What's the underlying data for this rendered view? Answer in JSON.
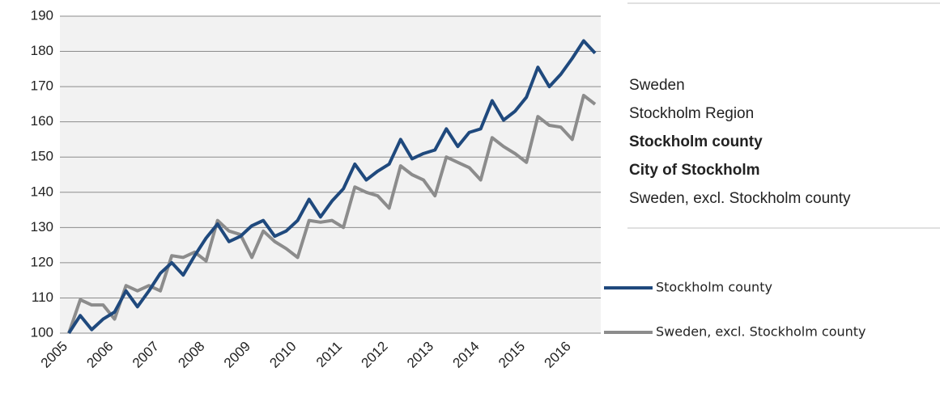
{
  "chart_data": {
    "type": "line",
    "categories": [
      "2005",
      null,
      null,
      null,
      "2006",
      null,
      null,
      null,
      "2007",
      null,
      null,
      null,
      "2008",
      null,
      null,
      null,
      "2009",
      null,
      null,
      null,
      "2010",
      null,
      null,
      null,
      "2011",
      null,
      null,
      null,
      "2012",
      null,
      null,
      null,
      "2013",
      null,
      null,
      null,
      "2014",
      null,
      null,
      null,
      "2015",
      null,
      null,
      null,
      "2016",
      null,
      null
    ],
    "series": [
      {
        "name": "Stockholm county",
        "color": "#1f497d",
        "values": [
          100,
          105,
          101,
          104,
          106,
          112,
          107.5,
          112,
          117,
          120,
          116.5,
          122,
          127,
          131,
          126,
          127.5,
          130.5,
          132,
          127.5,
          129,
          132,
          138,
          133,
          137.5,
          141,
          148,
          143.5,
          146,
          148,
          155,
          149.5,
          151,
          152,
          158,
          153,
          157,
          158,
          166,
          160.5,
          163,
          167,
          175.5,
          170,
          173.5,
          178,
          183,
          179.5
        ]
      },
      {
        "name": "Sweden, excl. Stockholm county",
        "color": "#8c8c8c",
        "values": [
          100,
          109.5,
          108,
          108,
          104,
          113.5,
          112,
          113.5,
          112,
          122,
          121.5,
          123,
          120.5,
          132,
          129,
          128,
          121.5,
          129,
          126,
          124,
          121.5,
          132,
          131.5,
          132,
          130,
          141.5,
          140,
          139,
          135.5,
          147.5,
          145,
          143.5,
          139,
          150,
          148.5,
          147,
          143.5,
          155.5,
          153,
          151,
          148.5,
          161.5,
          159,
          158.5,
          155,
          167.5,
          165
        ]
      }
    ],
    "ylim": [
      100,
      190
    ],
    "yticks": [
      100,
      110,
      120,
      130,
      140,
      150,
      160,
      170,
      180,
      190
    ],
    "grid": true
  },
  "panel": {
    "items": [
      {
        "text": "Sweden",
        "bold": false
      },
      {
        "text": "Stockholm Region",
        "bold": false
      },
      {
        "text": "Stockholm county",
        "bold": true
      },
      {
        "text": "City of Stockholm",
        "bold": true
      },
      {
        "text": "Sweden, excl. Stockholm county",
        "bold": false
      }
    ]
  }
}
